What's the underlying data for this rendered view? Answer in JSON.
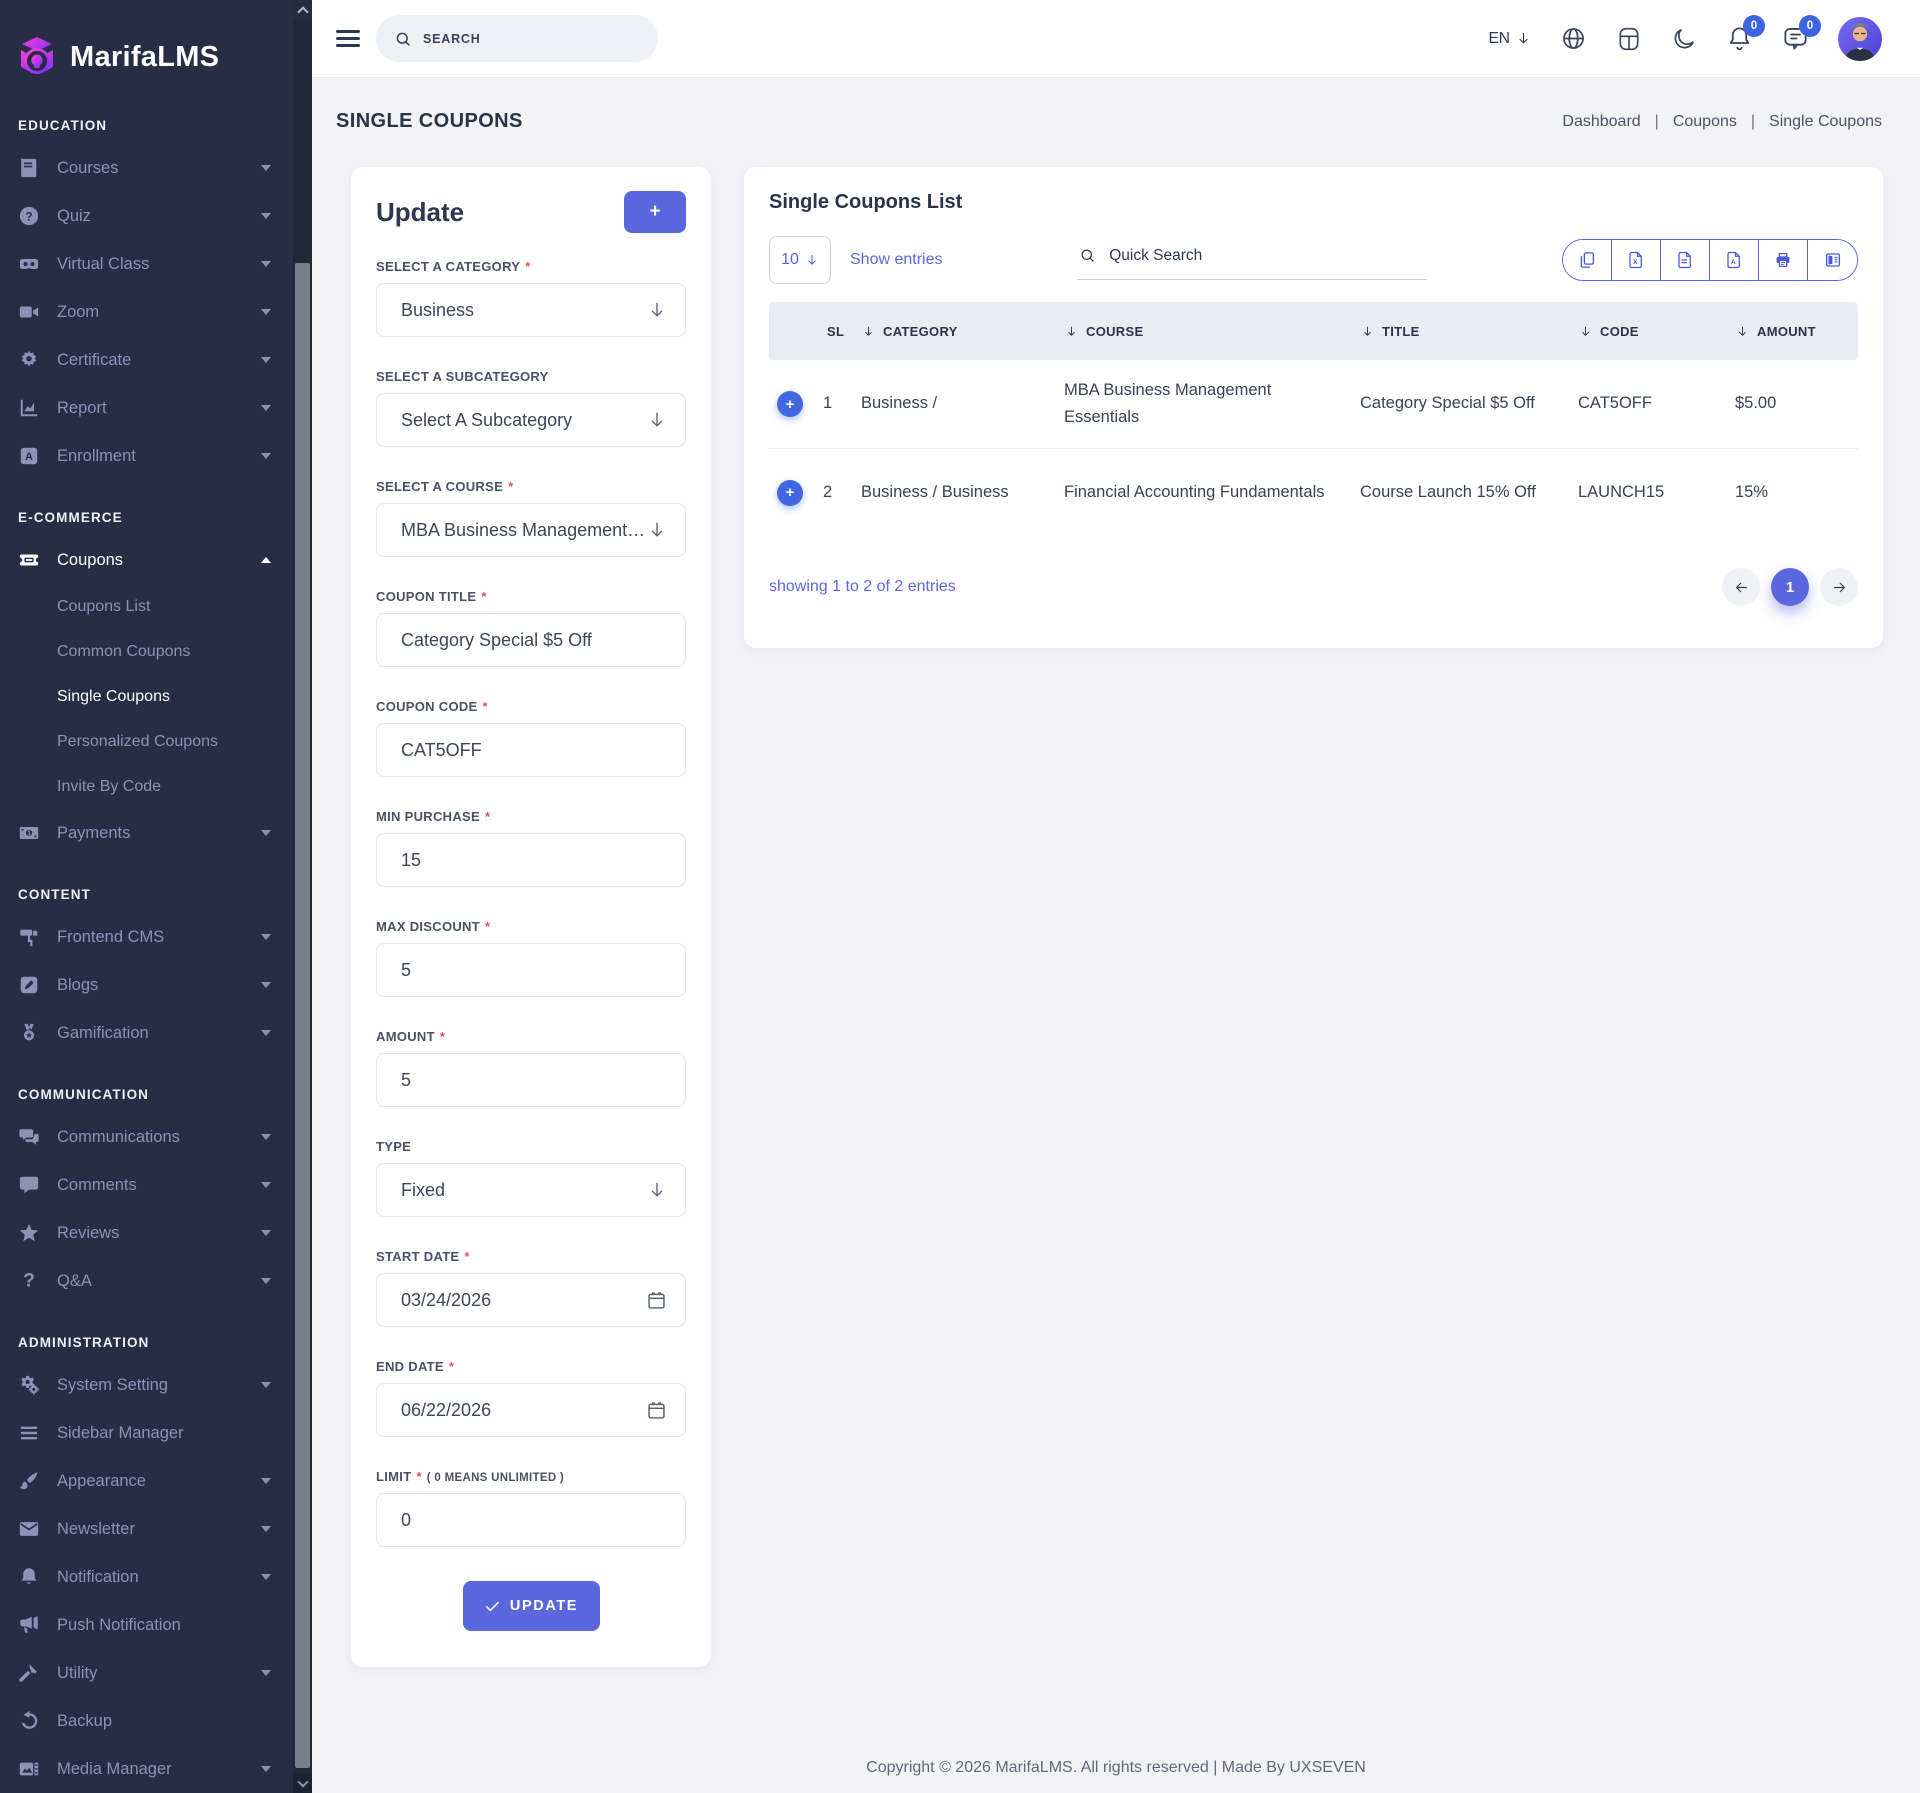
{
  "brand": {
    "name": "MarifaLMS"
  },
  "colors": {
    "accent": "#5a67dd",
    "badge_blue": "#3c63e2",
    "sidebar_bg": "#262d44",
    "plus_blue": "#4168e1"
  },
  "sidebar": {
    "sections": [
      {
        "label": "EDUCATION",
        "items": [
          {
            "label": "Courses",
            "icon": "book-icon",
            "caret": "down"
          },
          {
            "label": "Quiz",
            "icon": "question-circle-icon",
            "caret": "down"
          },
          {
            "label": "Virtual Class",
            "icon": "vr-goggles-icon",
            "caret": "down"
          },
          {
            "label": "Zoom",
            "icon": "video-camera-icon",
            "caret": "down"
          },
          {
            "label": "Certificate",
            "icon": "certificate-seal-icon",
            "caret": "down"
          },
          {
            "label": "Report",
            "icon": "report-chart-icon",
            "caret": "down"
          },
          {
            "label": "Enrollment",
            "icon": "enrollment-icon",
            "caret": "down"
          }
        ]
      },
      {
        "label": "E-COMMERCE",
        "items": [
          {
            "label": "Coupons",
            "icon": "coupon-ticket-icon",
            "caret": "up",
            "active": true,
            "submenu": [
              {
                "label": "Coupons List"
              },
              {
                "label": "Common Coupons"
              },
              {
                "label": "Single Coupons",
                "active": true
              },
              {
                "label": "Personalized Coupons"
              },
              {
                "label": "Invite By Code"
              }
            ]
          },
          {
            "label": "Payments",
            "icon": "payments-icon",
            "caret": "down"
          }
        ]
      },
      {
        "label": "CONTENT",
        "items": [
          {
            "label": "Frontend CMS",
            "icon": "paint-roller-icon",
            "caret": "down"
          },
          {
            "label": "Blogs",
            "icon": "blog-edit-icon",
            "caret": "down"
          },
          {
            "label": "Gamification",
            "icon": "medal-icon",
            "caret": "down"
          }
        ]
      },
      {
        "label": "COMMUNICATION",
        "items": [
          {
            "label": "Communications",
            "icon": "chat-bubbles-icon",
            "caret": "down"
          },
          {
            "label": "Comments",
            "icon": "comment-icon",
            "caret": "down"
          },
          {
            "label": "Reviews",
            "icon": "star-icon",
            "caret": "down"
          },
          {
            "label": "Q&A",
            "icon": "question-mark-icon",
            "caret": "down"
          }
        ]
      },
      {
        "label": "ADMINISTRATION",
        "items": [
          {
            "label": "System Setting",
            "icon": "gears-icon",
            "caret": "down"
          },
          {
            "label": "Sidebar Manager",
            "icon": "menu-bars-icon"
          },
          {
            "label": "Appearance",
            "icon": "paint-brush-icon",
            "caret": "down"
          },
          {
            "label": "Newsletter",
            "icon": "newsletter-mail-icon",
            "caret": "down"
          },
          {
            "label": "Notification",
            "icon": "bell-icon",
            "caret": "down"
          },
          {
            "label": "Push Notification",
            "icon": "megaphone-icon"
          },
          {
            "label": "Utility",
            "icon": "hammer-icon",
            "caret": "down"
          },
          {
            "label": "Backup",
            "icon": "restore-icon"
          },
          {
            "label": "Media Manager",
            "icon": "media-icon",
            "caret": "down"
          }
        ]
      }
    ]
  },
  "topbar": {
    "search_placeholder": "SEARCH",
    "language": "EN",
    "notification_count": "0",
    "message_count": "0"
  },
  "page": {
    "title": "SINGLE COUPONS",
    "separator": "|",
    "breadcrumb": [
      {
        "label": "Dashboard"
      },
      {
        "label": "Coupons"
      },
      {
        "label": "Single Coupons"
      }
    ]
  },
  "form": {
    "title": "Update",
    "add_button_label": "+",
    "required_marker": "*",
    "submit_label": "UPDATE",
    "fields": [
      {
        "label": "SELECT A CATEGORY",
        "required": true,
        "type": "select",
        "value": "Business"
      },
      {
        "label": "SELECT A SUBCATEGORY",
        "required": false,
        "type": "select",
        "value": "Select A Subcategory"
      },
      {
        "label": "SELECT A COURSE",
        "required": true,
        "type": "select",
        "value": "MBA Business Management ..."
      },
      {
        "label": "COUPON TITLE",
        "required": true,
        "type": "text",
        "value": "Category Special $5 Off"
      },
      {
        "label": "COUPON CODE",
        "required": true,
        "type": "text",
        "value": "CAT5OFF"
      },
      {
        "label": "MIN PURCHASE",
        "required": true,
        "type": "text",
        "value": "15"
      },
      {
        "label": "MAX DISCOUNT",
        "required": true,
        "type": "text",
        "value": "5"
      },
      {
        "label": "AMOUNT",
        "required": true,
        "type": "text",
        "value": "5"
      },
      {
        "label": "TYPE",
        "required": false,
        "type": "select",
        "value": "Fixed"
      },
      {
        "label": "START DATE",
        "required": true,
        "type": "date",
        "value": "03/24/2026"
      },
      {
        "label": "END DATE",
        "required": true,
        "type": "date",
        "value": "06/22/2026"
      },
      {
        "label": "LIMIT",
        "required": true,
        "note": "( 0 MEANS UNLIMITED )",
        "type": "text",
        "value": "0"
      }
    ]
  },
  "table": {
    "title": "Single Coupons List",
    "per_page_value": "10",
    "show_entries_label": "Show entries",
    "search_placeholder": "Quick Search",
    "export_buttons": [
      "copy-icon",
      "export-excel-icon",
      "export-csv-icon",
      "export-pdf-icon",
      "print-icon",
      "columns-icon"
    ],
    "columns": [
      "SL",
      "CATEGORY",
      "COURSE",
      "TITLE",
      "CODE",
      "AMOUNT"
    ],
    "expand_label": "+",
    "rows": [
      {
        "sl": "1",
        "category": "Business /",
        "course": "MBA Business Management Essentials",
        "title": "Category Special $5 Off",
        "code": "CAT5OFF",
        "amount": "$5.00"
      },
      {
        "sl": "2",
        "category": "Business / Business",
        "course": "Financial Accounting Fundamentals",
        "title": "Course Launch 15% Off",
        "code": "LAUNCH15",
        "amount": "15%"
      }
    ],
    "summary": "showing 1 to 2 of 2 entries",
    "pagination": {
      "current_page": "1"
    }
  },
  "footer": {
    "text": "Copyright © 2026 MarifaLMS. All rights reserved | Made By UXSEVEN"
  }
}
